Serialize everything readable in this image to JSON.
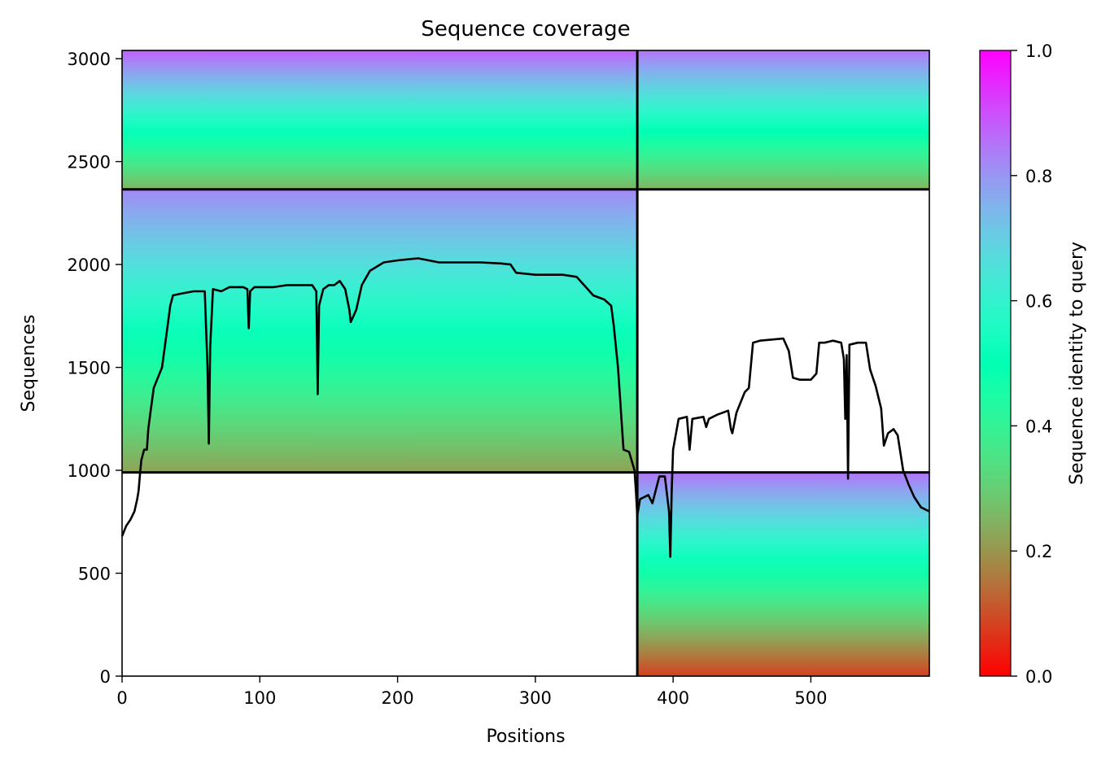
{
  "chart_data": {
    "type": "heatmap",
    "title": "Sequence coverage",
    "xlabel": "Positions",
    "ylabel": "Sequences",
    "colorbar_label": "Sequence identity to query",
    "colormap": "rainbow_r",
    "xlim": [
      0,
      586
    ],
    "ylim": [
      0,
      3040
    ],
    "x_ticks": [
      0,
      100,
      200,
      300,
      400,
      500
    ],
    "y_ticks": [
      0,
      500,
      1000,
      1500,
      2000,
      2500,
      3000
    ],
    "colorbar_ticks": [
      "0.0",
      "0.2",
      "0.4",
      "0.6",
      "0.8",
      "1.0"
    ],
    "colorbar_range": [
      0,
      1
    ],
    "separators": {
      "vertical_x": 374,
      "horizontal_y": [
        990,
        2365
      ]
    },
    "blocks": [
      {
        "x": [
          0,
          374
        ],
        "y": [
          2365,
          3040
        ],
        "identity_top": 0.88,
        "identity_bottom": 0.25
      },
      {
        "x": [
          0,
          374
        ],
        "y": [
          990,
          2365
        ],
        "identity_top": 0.82,
        "identity_bottom": 0.22
      },
      {
        "x": [
          374,
          586
        ],
        "y": [
          2365,
          3040
        ],
        "identity_top": 0.85,
        "identity_bottom": 0.25
      },
      {
        "x": [
          374,
          586
        ],
        "y": [
          0,
          990
        ],
        "identity_top": 0.85,
        "identity_bottom": 0.08
      }
    ],
    "coverage_line": [
      [
        0,
        680
      ],
      [
        3,
        730
      ],
      [
        6,
        760
      ],
      [
        9,
        800
      ],
      [
        11,
        860
      ],
      [
        12,
        900
      ],
      [
        13,
        980
      ],
      [
        14,
        1050
      ],
      [
        16,
        1100
      ],
      [
        18,
        1100
      ],
      [
        19,
        1200
      ],
      [
        21,
        1300
      ],
      [
        23,
        1400
      ],
      [
        26,
        1450
      ],
      [
        29,
        1500
      ],
      [
        31,
        1600
      ],
      [
        33,
        1700
      ],
      [
        35,
        1800
      ],
      [
        37,
        1850
      ],
      [
        44,
        1860
      ],
      [
        52,
        1870
      ],
      [
        60,
        1870
      ],
      [
        62,
        1500
      ],
      [
        63,
        1130
      ],
      [
        64,
        1600
      ],
      [
        66,
        1880
      ],
      [
        72,
        1870
      ],
      [
        78,
        1890
      ],
      [
        88,
        1890
      ],
      [
        91,
        1880
      ],
      [
        92,
        1690
      ],
      [
        93,
        1870
      ],
      [
        96,
        1890
      ],
      [
        110,
        1890
      ],
      [
        120,
        1900
      ],
      [
        130,
        1900
      ],
      [
        138,
        1900
      ],
      [
        141,
        1870
      ],
      [
        142,
        1370
      ],
      [
        143,
        1800
      ],
      [
        146,
        1880
      ],
      [
        150,
        1900
      ],
      [
        154,
        1900
      ],
      [
        158,
        1920
      ],
      [
        162,
        1880
      ],
      [
        165,
        1780
      ],
      [
        166,
        1720
      ],
      [
        170,
        1780
      ],
      [
        174,
        1900
      ],
      [
        180,
        1970
      ],
      [
        190,
        2010
      ],
      [
        200,
        2020
      ],
      [
        215,
        2030
      ],
      [
        230,
        2010
      ],
      [
        245,
        2010
      ],
      [
        260,
        2010
      ],
      [
        275,
        2005
      ],
      [
        282,
        2000
      ],
      [
        286,
        1960
      ],
      [
        300,
        1950
      ],
      [
        320,
        1950
      ],
      [
        330,
        1940
      ],
      [
        338,
        1880
      ],
      [
        342,
        1850
      ],
      [
        350,
        1830
      ],
      [
        355,
        1800
      ],
      [
        357,
        1700
      ],
      [
        360,
        1500
      ],
      [
        362,
        1300
      ],
      [
        364,
        1100
      ],
      [
        368,
        1090
      ],
      [
        372,
        1000
      ],
      [
        373,
        900
      ],
      [
        374,
        780
      ],
      [
        376,
        860
      ],
      [
        382,
        880
      ],
      [
        385,
        840
      ],
      [
        390,
        970
      ],
      [
        394,
        970
      ],
      [
        397,
        800
      ],
      [
        398,
        580
      ],
      [
        399,
        900
      ],
      [
        400,
        1100
      ],
      [
        404,
        1250
      ],
      [
        410,
        1260
      ],
      [
        412,
        1100
      ],
      [
        414,
        1250
      ],
      [
        422,
        1260
      ],
      [
        424,
        1210
      ],
      [
        426,
        1250
      ],
      [
        432,
        1270
      ],
      [
        440,
        1290
      ],
      [
        442,
        1200
      ],
      [
        443,
        1180
      ],
      [
        446,
        1280
      ],
      [
        452,
        1380
      ],
      [
        455,
        1400
      ],
      [
        458,
        1620
      ],
      [
        463,
        1630
      ],
      [
        480,
        1640
      ],
      [
        484,
        1580
      ],
      [
        487,
        1450
      ],
      [
        492,
        1440
      ],
      [
        500,
        1440
      ],
      [
        504,
        1470
      ],
      [
        506,
        1620
      ],
      [
        510,
        1620
      ],
      [
        516,
        1630
      ],
      [
        522,
        1620
      ],
      [
        524,
        1540
      ],
      [
        525,
        1250
      ],
      [
        526,
        1560
      ],
      [
        527,
        960
      ],
      [
        528,
        1610
      ],
      [
        534,
        1620
      ],
      [
        540,
        1620
      ],
      [
        543,
        1490
      ],
      [
        547,
        1410
      ],
      [
        551,
        1300
      ],
      [
        553,
        1120
      ],
      [
        556,
        1180
      ],
      [
        560,
        1200
      ],
      [
        563,
        1170
      ],
      [
        567,
        1000
      ],
      [
        571,
        930
      ],
      [
        575,
        870
      ],
      [
        580,
        820
      ],
      [
        586,
        800
      ]
    ]
  }
}
